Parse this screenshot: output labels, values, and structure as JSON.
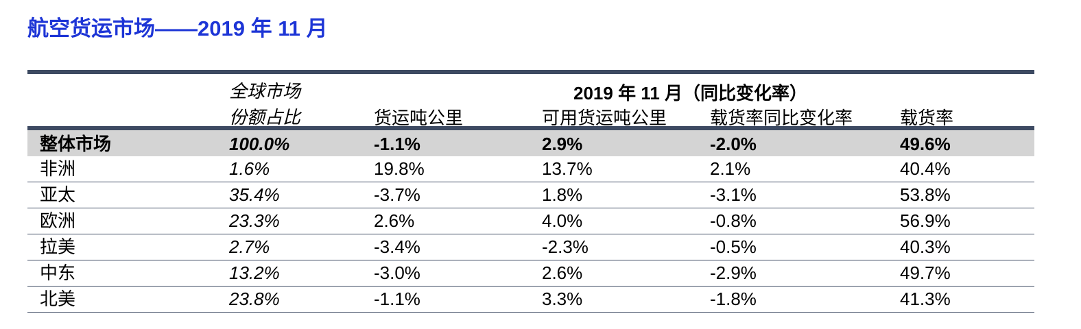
{
  "title": "航空货运市场——2019 年 11 月",
  "header": {
    "share_line1": "全球市场",
    "share_line2": "份额占比",
    "group_title": "2019 年 11 月（同比变化率）",
    "col_ctk": "货运吨公里",
    "col_actk": "可用货运吨公里",
    "col_lf_change": "载货率同比变化率",
    "col_lf": "载货率"
  },
  "rows": [
    {
      "region": "整体市场",
      "share": "100.0%",
      "ctk": "-1.1%",
      "actk": "2.9%",
      "lf_change": "-2.0%",
      "lf": "49.6%"
    },
    {
      "region": "非洲",
      "share": "1.6%",
      "ctk": "19.8%",
      "actk": "13.7%",
      "lf_change": "2.1%",
      "lf": "40.4%"
    },
    {
      "region": "亚太",
      "share": "35.4%",
      "ctk": "-3.7%",
      "actk": "1.8%",
      "lf_change": "-3.1%",
      "lf": "53.8%"
    },
    {
      "region": "欧洲",
      "share": "23.3%",
      "ctk": "2.6%",
      "actk": "4.0%",
      "lf_change": "-0.8%",
      "lf": "56.9%"
    },
    {
      "region": "拉美",
      "share": "2.7%",
      "ctk": "-3.4%",
      "actk": "-2.3%",
      "lf_change": "-0.5%",
      "lf": "40.3%"
    },
    {
      "region": "中东",
      "share": "13.2%",
      "ctk": "-3.0%",
      "actk": "2.6%",
      "lf_change": "-2.9%",
      "lf": "49.7%"
    },
    {
      "region": "北美",
      "share": "23.8%",
      "ctk": "-1.1%",
      "actk": "3.3%",
      "lf_change": "-1.8%",
      "lf": "41.3%"
    }
  ],
  "colors": {
    "title": "#1d35d6",
    "rule": "#3d4a62",
    "total_row_bg": "#d4d4d4"
  }
}
